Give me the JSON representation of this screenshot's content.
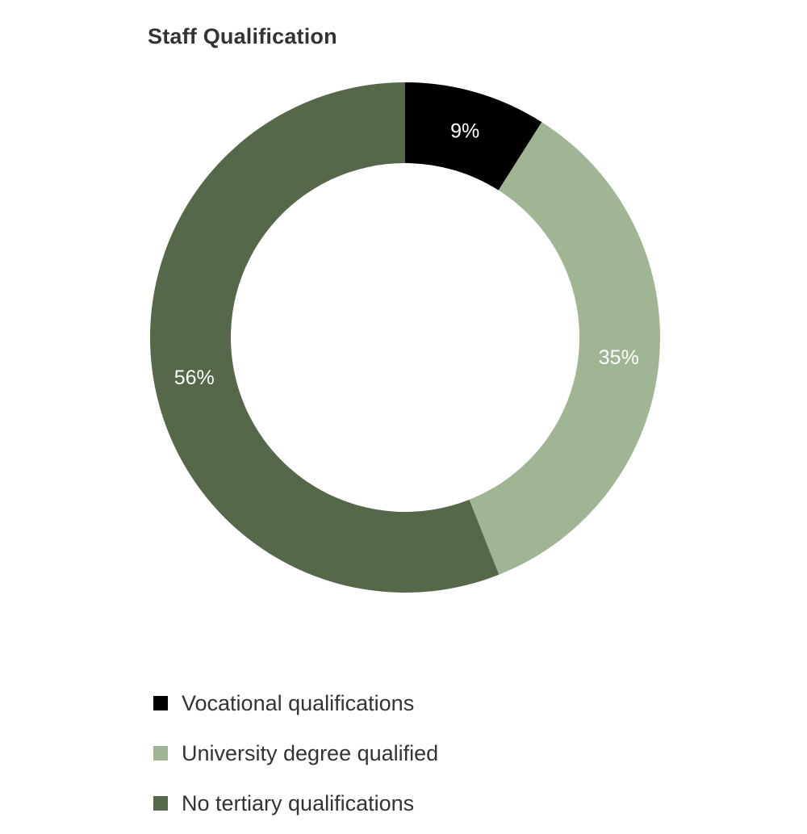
{
  "chart_data": {
    "type": "pie",
    "variant": "donut",
    "title": "Staff Qualification",
    "series": [
      {
        "name": "Vocational qualifications",
        "value": 9,
        "label": "9%",
        "color": "#000000"
      },
      {
        "name": "University degree qualified",
        "value": 35,
        "label": "35%",
        "color": "#9fb594"
      },
      {
        "name": "No tertiary qualifications",
        "value": 56,
        "label": "56%",
        "color": "#56684a"
      }
    ],
    "start": "top",
    "direction": "clockwise",
    "legend_position": "bottom-left"
  }
}
